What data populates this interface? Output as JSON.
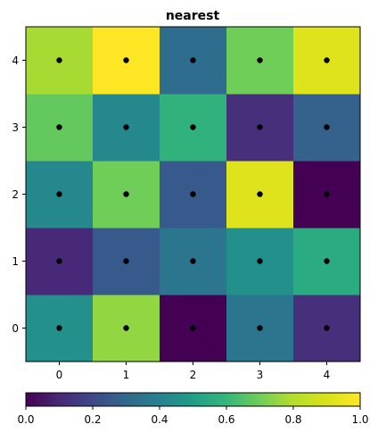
{
  "chart_data": {
    "type": "heatmap",
    "title": "nearest",
    "x": [
      0,
      1,
      2,
      3,
      4
    ],
    "y": [
      0,
      1,
      2,
      3,
      4
    ],
    "xticks": [
      "0",
      "1",
      "2",
      "3",
      "4"
    ],
    "yticks": [
      "0",
      "1",
      "2",
      "3",
      "4"
    ],
    "xlim": [
      -0.5,
      4.5
    ],
    "ylim": [
      -0.5,
      4.5
    ],
    "values": [
      [
        0.45,
        0.75,
        0.0,
        0.35,
        0.12
      ],
      [
        0.1,
        0.25,
        0.35,
        0.45,
        0.55
      ],
      [
        0.42,
        0.7,
        0.25,
        0.92,
        0.0
      ],
      [
        0.68,
        0.42,
        0.58,
        0.12,
        0.28
      ],
      [
        0.78,
        1.0,
        0.32,
        0.7,
        0.92
      ]
    ],
    "markers": "black dot at each grid point",
    "colormap": "viridis",
    "colorbar": {
      "orientation": "horizontal",
      "range": [
        0.0,
        1.0
      ],
      "ticks": [
        "0.0",
        "0.2",
        "0.4",
        "0.6",
        "0.8",
        "1.0"
      ]
    },
    "grid": false
  }
}
